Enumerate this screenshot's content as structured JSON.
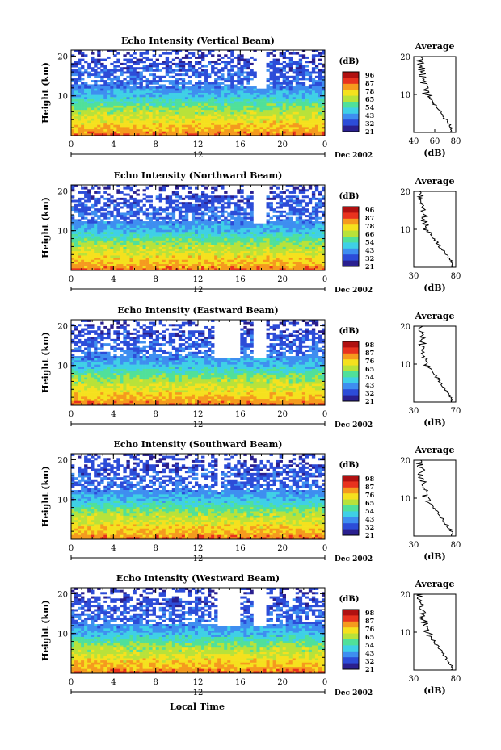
{
  "chart_data": [
    {
      "type": "heatmap",
      "title": "Echo Intensity (Vertical Beam)",
      "ylabel": "Height (km)",
      "x_ticks": [
        "0",
        "4",
        "8",
        "12",
        "16",
        "20",
        "0"
      ],
      "y_ticks": [
        "20",
        "10"
      ],
      "date_label": "12",
      "date_suffix": "Dec 2002",
      "colorbar": {
        "unit": "(dB)",
        "labels": [
          "96",
          "87",
          "78",
          "65",
          "54",
          "43",
          "32",
          "21"
        ]
      },
      "gaps": [
        [
          17.5,
          18.6
        ]
      ],
      "profile": {
        "title": "Average",
        "xlabel": "(dB)",
        "xticks": [
          "40",
          "60",
          "80"
        ],
        "yticks": [
          "20",
          "10"
        ]
      }
    },
    {
      "type": "heatmap",
      "title": "Echo Intensity (Northward Beam)",
      "ylabel": "Height (km)",
      "x_ticks": [
        "0",
        "4",
        "8",
        "12",
        "16",
        "20",
        "0"
      ],
      "y_ticks": [
        "20",
        "10"
      ],
      "date_label": "12",
      "date_suffix": "Dec 2002",
      "colorbar": {
        "unit": "(dB)",
        "labels": [
          "96",
          "87",
          "78",
          "66",
          "54",
          "43",
          "32",
          "21"
        ]
      },
      "gaps": [
        [
          17.3,
          18.4
        ]
      ],
      "profile": {
        "title": "Average",
        "xlabel": "(dB)",
        "xticks": [
          "30",
          "80"
        ],
        "yticks": [
          "20",
          "10"
        ]
      }
    },
    {
      "type": "heatmap",
      "title": "Echo Intensity (Eastward Beam)",
      "ylabel": "Height (km)",
      "x_ticks": [
        "0",
        "4",
        "8",
        "12",
        "16",
        "20",
        "0"
      ],
      "y_ticks": [
        "20",
        "10"
      ],
      "date_label": "12",
      "date_suffix": "Dec 2002",
      "colorbar": {
        "unit": "(dB)",
        "labels": [
          "98",
          "87",
          "76",
          "65",
          "54",
          "43",
          "32",
          "21"
        ]
      },
      "gaps": [
        [
          13.5,
          16.0
        ],
        [
          17.2,
          18.6
        ]
      ],
      "profile": {
        "title": "Average",
        "xlabel": "(dB)",
        "xticks": [
          "30",
          "70"
        ],
        "yticks": [
          "20",
          "10"
        ]
      }
    },
    {
      "type": "heatmap",
      "title": "Echo Intensity (Southward Beam)",
      "ylabel": "Height (km)",
      "x_ticks": [
        "0",
        "4",
        "8",
        "12",
        "16",
        "20",
        "0"
      ],
      "y_ticks": [
        "20",
        "10"
      ],
      "date_label": "12",
      "date_suffix": "Dec 2002",
      "colorbar": {
        "unit": "(dB)",
        "labels": [
          "98",
          "87",
          "76",
          "65",
          "54",
          "43",
          "32",
          "21"
        ]
      },
      "gaps": [
        [
          13.7,
          14.3
        ]
      ],
      "profile": {
        "title": "Average",
        "xlabel": "(dB)",
        "xticks": [
          "30",
          "80"
        ],
        "yticks": [
          "20",
          "10"
        ]
      }
    },
    {
      "type": "heatmap",
      "title": "Echo Intensity (Westward Beam)",
      "ylabel": "Height (km)",
      "x_ticks": [
        "0",
        "4",
        "8",
        "12",
        "16",
        "20",
        "0"
      ],
      "y_ticks": [
        "20",
        "10"
      ],
      "date_label": "12",
      "date_suffix": "Dec 2002",
      "colorbar": {
        "unit": "(dB)",
        "labels": [
          "98",
          "87",
          "76",
          "65",
          "54",
          "43",
          "32",
          "21"
        ]
      },
      "gaps": [
        [
          13.7,
          16.0
        ],
        [
          17.3,
          18.6
        ]
      ],
      "profile": {
        "title": "Average",
        "xlabel": "(dB)",
        "xticks": [
          "30",
          "80"
        ],
        "yticks": [
          "20",
          "10"
        ]
      }
    }
  ],
  "shared_xlabel": "Local Time",
  "colors": {
    "scale": [
      "#2a1f8f",
      "#2c4cd8",
      "#3e8ef0",
      "#3fd0e6",
      "#50e09a",
      "#b8e23a",
      "#f5e11e",
      "#f59a1e",
      "#e8321e",
      "#b01010"
    ]
  }
}
